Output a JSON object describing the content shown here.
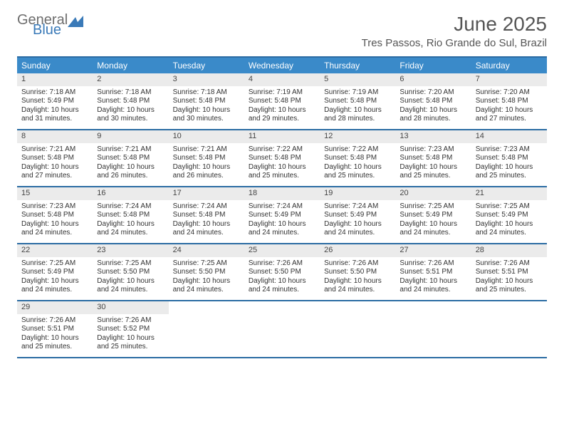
{
  "brand": {
    "general": "General",
    "blue": "Blue"
  },
  "title": "June 2025",
  "location": "Tres Passos, Rio Grande do Sul, Brazil",
  "colors": {
    "header_bar": "#3a8ac9",
    "border": "#2b6ca3",
    "daynum_bg": "#ebebeb",
    "text": "#333333",
    "logo_gray": "#6d6d6d",
    "logo_blue": "#3a7ab8"
  },
  "weekdays": [
    "Sunday",
    "Monday",
    "Tuesday",
    "Wednesday",
    "Thursday",
    "Friday",
    "Saturday"
  ],
  "weeks": [
    [
      {
        "n": "1",
        "sr": "7:18 AM",
        "ss": "5:49 PM",
        "dl": "10 hours and 31 minutes."
      },
      {
        "n": "2",
        "sr": "7:18 AM",
        "ss": "5:48 PM",
        "dl": "10 hours and 30 minutes."
      },
      {
        "n": "3",
        "sr": "7:18 AM",
        "ss": "5:48 PM",
        "dl": "10 hours and 30 minutes."
      },
      {
        "n": "4",
        "sr": "7:19 AM",
        "ss": "5:48 PM",
        "dl": "10 hours and 29 minutes."
      },
      {
        "n": "5",
        "sr": "7:19 AM",
        "ss": "5:48 PM",
        "dl": "10 hours and 28 minutes."
      },
      {
        "n": "6",
        "sr": "7:20 AM",
        "ss": "5:48 PM",
        "dl": "10 hours and 28 minutes."
      },
      {
        "n": "7",
        "sr": "7:20 AM",
        "ss": "5:48 PM",
        "dl": "10 hours and 27 minutes."
      }
    ],
    [
      {
        "n": "8",
        "sr": "7:21 AM",
        "ss": "5:48 PM",
        "dl": "10 hours and 27 minutes."
      },
      {
        "n": "9",
        "sr": "7:21 AM",
        "ss": "5:48 PM",
        "dl": "10 hours and 26 minutes."
      },
      {
        "n": "10",
        "sr": "7:21 AM",
        "ss": "5:48 PM",
        "dl": "10 hours and 26 minutes."
      },
      {
        "n": "11",
        "sr": "7:22 AM",
        "ss": "5:48 PM",
        "dl": "10 hours and 25 minutes."
      },
      {
        "n": "12",
        "sr": "7:22 AM",
        "ss": "5:48 PM",
        "dl": "10 hours and 25 minutes."
      },
      {
        "n": "13",
        "sr": "7:23 AM",
        "ss": "5:48 PM",
        "dl": "10 hours and 25 minutes."
      },
      {
        "n": "14",
        "sr": "7:23 AM",
        "ss": "5:48 PM",
        "dl": "10 hours and 25 minutes."
      }
    ],
    [
      {
        "n": "15",
        "sr": "7:23 AM",
        "ss": "5:48 PM",
        "dl": "10 hours and 24 minutes."
      },
      {
        "n": "16",
        "sr": "7:24 AM",
        "ss": "5:48 PM",
        "dl": "10 hours and 24 minutes."
      },
      {
        "n": "17",
        "sr": "7:24 AM",
        "ss": "5:48 PM",
        "dl": "10 hours and 24 minutes."
      },
      {
        "n": "18",
        "sr": "7:24 AM",
        "ss": "5:49 PM",
        "dl": "10 hours and 24 minutes."
      },
      {
        "n": "19",
        "sr": "7:24 AM",
        "ss": "5:49 PM",
        "dl": "10 hours and 24 minutes."
      },
      {
        "n": "20",
        "sr": "7:25 AM",
        "ss": "5:49 PM",
        "dl": "10 hours and 24 minutes."
      },
      {
        "n": "21",
        "sr": "7:25 AM",
        "ss": "5:49 PM",
        "dl": "10 hours and 24 minutes."
      }
    ],
    [
      {
        "n": "22",
        "sr": "7:25 AM",
        "ss": "5:49 PM",
        "dl": "10 hours and 24 minutes."
      },
      {
        "n": "23",
        "sr": "7:25 AM",
        "ss": "5:50 PM",
        "dl": "10 hours and 24 minutes."
      },
      {
        "n": "24",
        "sr": "7:25 AM",
        "ss": "5:50 PM",
        "dl": "10 hours and 24 minutes."
      },
      {
        "n": "25",
        "sr": "7:26 AM",
        "ss": "5:50 PM",
        "dl": "10 hours and 24 minutes."
      },
      {
        "n": "26",
        "sr": "7:26 AM",
        "ss": "5:50 PM",
        "dl": "10 hours and 24 minutes."
      },
      {
        "n": "27",
        "sr": "7:26 AM",
        "ss": "5:51 PM",
        "dl": "10 hours and 24 minutes."
      },
      {
        "n": "28",
        "sr": "7:26 AM",
        "ss": "5:51 PM",
        "dl": "10 hours and 25 minutes."
      }
    ],
    [
      {
        "n": "29",
        "sr": "7:26 AM",
        "ss": "5:51 PM",
        "dl": "10 hours and 25 minutes."
      },
      {
        "n": "30",
        "sr": "7:26 AM",
        "ss": "5:52 PM",
        "dl": "10 hours and 25 minutes."
      },
      null,
      null,
      null,
      null,
      null
    ]
  ],
  "labels": {
    "sunrise": "Sunrise: ",
    "sunset": "Sunset: ",
    "daylight": "Daylight: "
  }
}
